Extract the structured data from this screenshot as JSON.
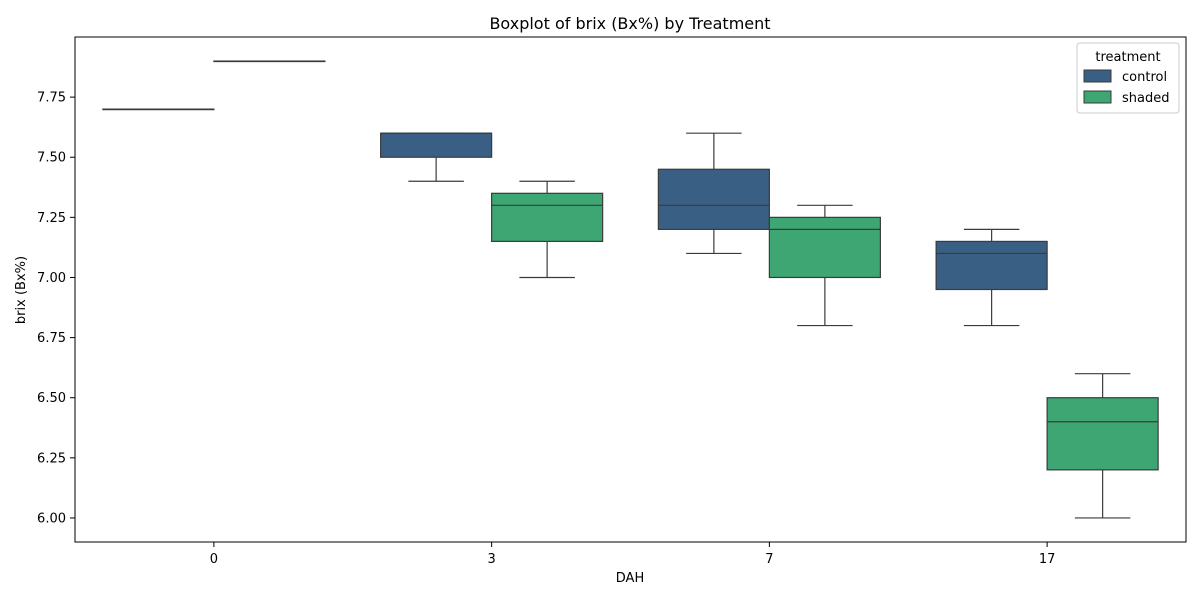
{
  "chart_data": {
    "type": "box",
    "title": "Boxplot of brix (Bx%) by Treatment",
    "xlabel": "DAH",
    "ylabel": "brix (Bx%)",
    "ylim": [
      5.9,
      8.0
    ],
    "yticks": [
      "6.00",
      "6.25",
      "6.50",
      "6.75",
      "7.00",
      "7.25",
      "7.50",
      "7.75"
    ],
    "ytick_values": [
      6.0,
      6.25,
      6.5,
      6.75,
      7.0,
      7.25,
      7.5,
      7.75
    ],
    "categories": [
      "0",
      "3",
      "7",
      "17"
    ],
    "grid": false,
    "legend": {
      "title": "treatment",
      "placement": "upper right"
    },
    "series": [
      {
        "name": "control",
        "color": "#3a5f84",
        "boxes": [
          {
            "category": "0",
            "whislo": 7.7,
            "q1": 7.7,
            "med": 7.7,
            "q3": 7.7,
            "whishi": 7.7
          },
          {
            "category": "3",
            "whislo": 7.4,
            "q1": 7.5,
            "med": 7.6,
            "q3": 7.6,
            "whishi": 7.6
          },
          {
            "category": "7",
            "whislo": 7.1,
            "q1": 7.2,
            "med": 7.3,
            "q3": 7.45,
            "whishi": 7.6
          },
          {
            "category": "17",
            "whislo": 6.8,
            "q1": 6.95,
            "med": 7.1,
            "q3": 7.15,
            "whishi": 7.2
          }
        ]
      },
      {
        "name": "shaded",
        "color": "#3da672",
        "boxes": [
          {
            "category": "0",
            "whislo": 7.9,
            "q1": 7.9,
            "med": 7.9,
            "q3": 7.9,
            "whishi": 7.9
          },
          {
            "category": "3",
            "whislo": 7.0,
            "q1": 7.15,
            "med": 7.3,
            "q3": 7.35,
            "whishi": 7.4
          },
          {
            "category": "7",
            "whislo": 6.8,
            "q1": 7.0,
            "med": 7.2,
            "q3": 7.25,
            "whishi": 7.3
          },
          {
            "category": "17",
            "whislo": 6.0,
            "q1": 6.2,
            "med": 6.4,
            "q3": 6.5,
            "whishi": 6.6
          }
        ]
      }
    ]
  }
}
